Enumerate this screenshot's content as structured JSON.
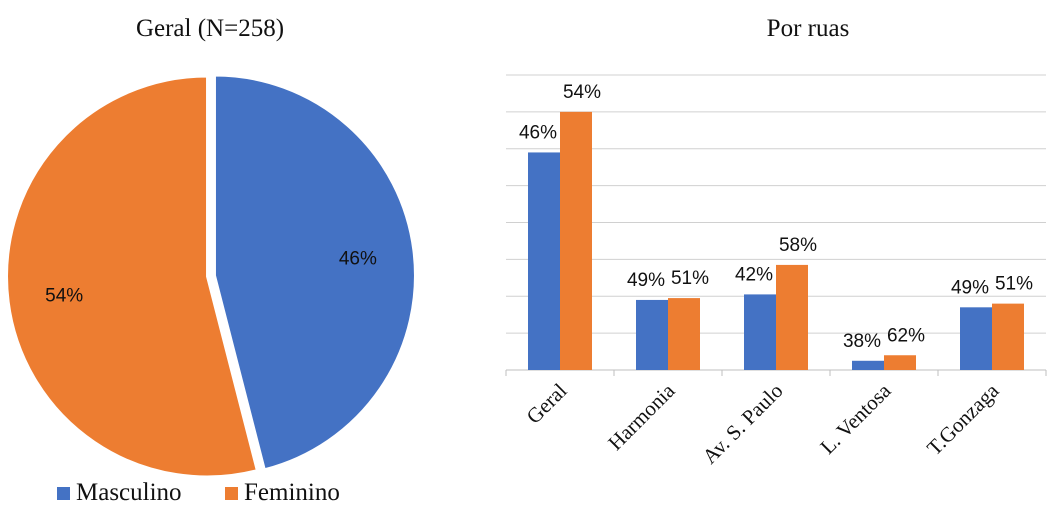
{
  "colors": {
    "masculino": "#4472C4",
    "feminino": "#ED7D31"
  },
  "chart_data": [
    {
      "type": "pie",
      "title": "Geral (N=258)",
      "slices": [
        {
          "name": "Masculino",
          "value": 46,
          "label": "46%"
        },
        {
          "name": "Feminino",
          "value": 54,
          "label": "54%"
        }
      ],
      "legend": [
        "Masculino",
        "Feminino"
      ],
      "legend_position": "bottom"
    },
    {
      "type": "bar",
      "title": "Por ruas",
      "categories": [
        "Geral",
        "Harmonia",
        "Av. S. Paulo",
        "L. Ventosa",
        "T.Gonzaga"
      ],
      "series": [
        {
          "name": "Masculino",
          "values": [
            118,
            38,
            41,
            5,
            34
          ],
          "labels": [
            "46%",
            "49%",
            "42%",
            "38%",
            "49%"
          ]
        },
        {
          "name": "Feminino",
          "values": [
            140,
            39,
            57,
            8,
            36
          ],
          "labels": [
            "54%",
            "51%",
            "58%",
            "62%",
            "51%"
          ]
        }
      ],
      "ylim": [
        0,
        160
      ],
      "grid": true
    }
  ]
}
